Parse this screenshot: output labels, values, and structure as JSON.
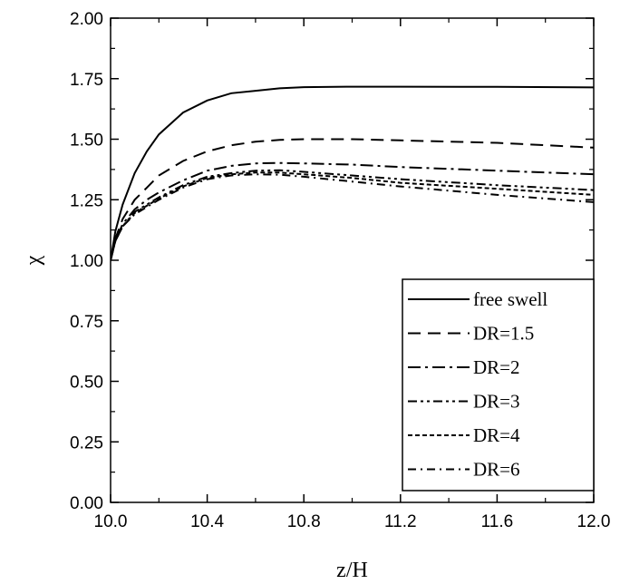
{
  "chart_data": {
    "type": "line",
    "title": "",
    "xlabel": "z/H",
    "ylabel": "χ",
    "xlim": [
      10.0,
      12.0
    ],
    "ylim": [
      0.0,
      2.0
    ],
    "xticks": [
      10.0,
      10.4,
      10.8,
      11.2,
      11.6,
      12.0
    ],
    "xtick_labels": [
      "10.0",
      "10.4",
      "10.8",
      "11.2",
      "11.6",
      "12.0"
    ],
    "yticks": [
      0.0,
      0.25,
      0.5,
      0.75,
      1.0,
      1.25,
      1.5,
      1.75,
      2.0
    ],
    "ytick_labels": [
      "0.00",
      "0.25",
      "0.50",
      "0.75",
      "1.00",
      "1.25",
      "1.50",
      "1.75",
      "2.00"
    ],
    "grid": false,
    "legend_position": "bottom-right",
    "series": [
      {
        "name": "free swell",
        "dash": "solid",
        "x": [
          10.0,
          10.02,
          10.05,
          10.1,
          10.15,
          10.2,
          10.3,
          10.4,
          10.5,
          10.6,
          10.7,
          10.8,
          11.0,
          11.2,
          11.6,
          12.0
        ],
        "y": [
          1.0,
          1.12,
          1.23,
          1.36,
          1.45,
          1.52,
          1.61,
          1.66,
          1.69,
          1.7,
          1.71,
          1.715,
          1.717,
          1.717,
          1.716,
          1.714
        ]
      },
      {
        "name": "DR=1.5",
        "dash": "dashed",
        "x": [
          10.0,
          10.02,
          10.05,
          10.1,
          10.15,
          10.2,
          10.3,
          10.4,
          10.5,
          10.6,
          10.7,
          10.8,
          11.0,
          11.2,
          11.6,
          12.0
        ],
        "y": [
          1.0,
          1.09,
          1.17,
          1.25,
          1.3,
          1.35,
          1.41,
          1.45,
          1.475,
          1.49,
          1.497,
          1.5,
          1.5,
          1.495,
          1.485,
          1.465
        ]
      },
      {
        "name": "DR=2",
        "dash": "dash-dot",
        "x": [
          10.0,
          10.02,
          10.05,
          10.1,
          10.15,
          10.2,
          10.3,
          10.4,
          10.5,
          10.6,
          10.7,
          10.8,
          11.0,
          11.2,
          11.6,
          12.0
        ],
        "y": [
          1.0,
          1.08,
          1.15,
          1.21,
          1.25,
          1.28,
          1.33,
          1.37,
          1.39,
          1.4,
          1.402,
          1.4,
          1.395,
          1.385,
          1.37,
          1.355
        ]
      },
      {
        "name": "DR=3",
        "dash": "dash-dot-dot",
        "x": [
          10.0,
          10.02,
          10.05,
          10.1,
          10.15,
          10.2,
          10.3,
          10.4,
          10.5,
          10.6,
          10.7,
          10.8,
          11.0,
          11.2,
          11.6,
          12.0
        ],
        "y": [
          1.0,
          1.08,
          1.14,
          1.2,
          1.23,
          1.26,
          1.31,
          1.345,
          1.36,
          1.37,
          1.372,
          1.365,
          1.35,
          1.335,
          1.31,
          1.29
        ]
      },
      {
        "name": "DR=4",
        "dash": "short-dash",
        "x": [
          10.0,
          10.02,
          10.05,
          10.1,
          10.15,
          10.2,
          10.3,
          10.4,
          10.5,
          10.6,
          10.7,
          10.8,
          11.0,
          11.2,
          11.6,
          12.0
        ],
        "y": [
          1.0,
          1.08,
          1.14,
          1.195,
          1.225,
          1.255,
          1.305,
          1.34,
          1.355,
          1.362,
          1.362,
          1.355,
          1.34,
          1.32,
          1.295,
          1.27
        ]
      },
      {
        "name": "DR=6",
        "dash": "dash-dot-sparse",
        "x": [
          10.0,
          10.02,
          10.05,
          10.1,
          10.15,
          10.2,
          10.3,
          10.4,
          10.5,
          10.6,
          10.7,
          10.8,
          11.0,
          11.2,
          11.6,
          12.0
        ],
        "y": [
          1.0,
          1.08,
          1.14,
          1.19,
          1.22,
          1.25,
          1.3,
          1.335,
          1.35,
          1.355,
          1.353,
          1.345,
          1.325,
          1.305,
          1.27,
          1.24
        ]
      }
    ]
  }
}
